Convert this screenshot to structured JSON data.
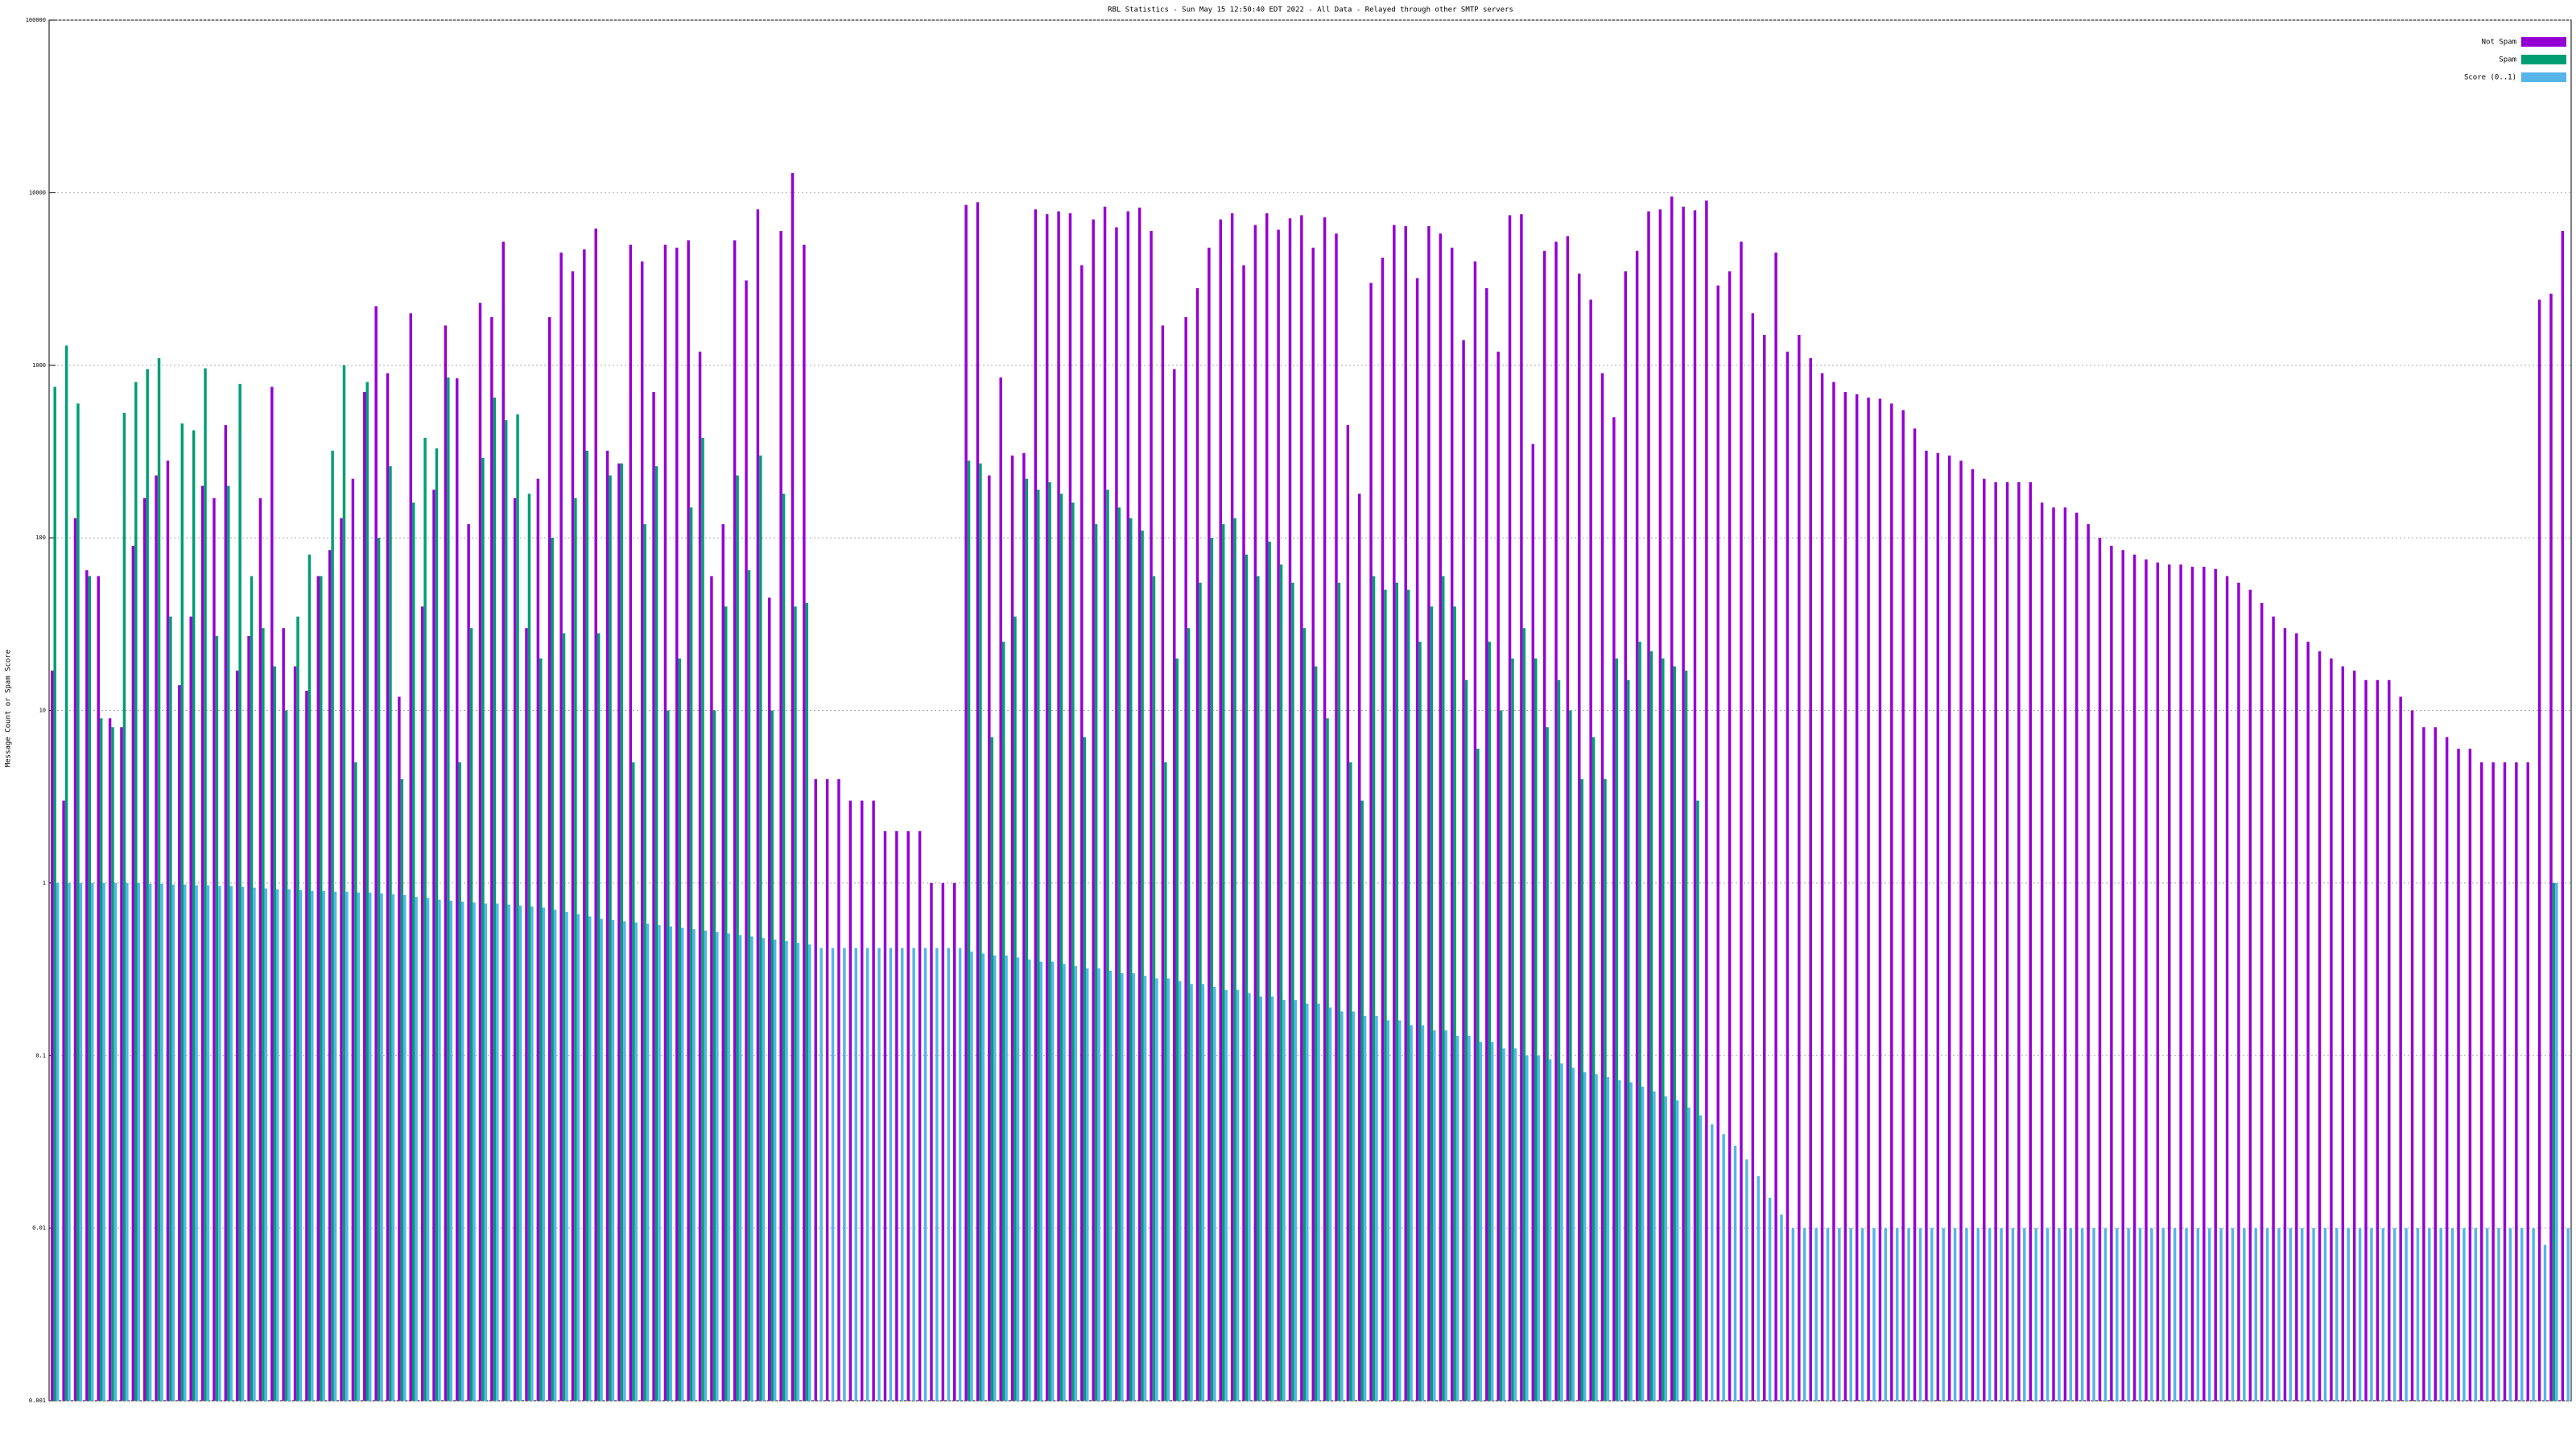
{
  "chart_data": {
    "type": "bar",
    "title": "RBL Statistics - Sun May 15 12:50:40 EDT 2022 - All Data - Relayed through other SMTP servers",
    "y_label": "Message Count or Spam Score",
    "log_scale": true,
    "grid": true,
    "legend": "top-right",
    "ylim": [
      0.001,
      100000
    ],
    "yticks": [
      0.001,
      0.01,
      0.1,
      1,
      10,
      100,
      1000,
      10000,
      100000
    ],
    "categories": [
      null,
      null,
      null,
      null,
      null,
      null,
      null,
      null,
      null,
      null,
      null,
      null,
      null,
      null,
      null,
      null,
      null,
      null,
      null,
      null,
      null,
      null,
      null,
      null,
      null,
      null,
      null,
      null,
      null,
      null,
      null,
      null,
      null,
      null,
      null,
      null,
      null,
      null,
      null,
      null,
      null,
      null,
      null,
      null,
      null,
      null,
      null,
      null,
      null,
      null,
      null,
      null,
      null,
      null,
      null,
      null,
      null,
      null,
      null,
      null,
      null,
      null,
      null,
      null,
      null,
      null,
      null,
      null,
      null,
      null,
      null,
      null,
      null,
      null,
      null,
      null,
      null,
      null,
      null,
      null,
      null,
      null,
      null,
      null,
      null,
      null,
      null,
      null,
      null,
      null,
      null,
      null,
      null,
      null,
      null,
      null,
      null,
      null,
      null,
      null,
      null,
      null,
      null,
      null,
      null,
      null,
      null,
      null,
      null,
      null,
      null,
      null,
      null,
      null,
      null,
      null,
      null,
      null,
      null,
      null,
      null,
      null,
      null,
      null,
      null,
      null,
      null,
      null,
      null,
      null,
      null,
      null,
      null,
      null,
      null,
      null,
      null,
      null,
      null,
      null,
      null,
      null,
      null,
      null,
      null,
      null,
      null,
      null,
      null,
      null,
      null,
      null,
      null,
      null,
      null,
      null,
      null,
      null,
      null,
      null,
      null,
      null,
      null,
      null,
      null,
      null,
      null,
      null,
      null,
      null,
      null,
      null,
      null,
      null,
      null,
      null,
      null,
      null,
      null,
      null,
      null,
      null,
      null,
      null,
      null,
      null,
      null,
      null,
      null,
      null,
      null,
      null,
      null,
      null,
      null,
      null,
      null,
      null,
      null,
      null,
      null,
      null,
      null,
      null,
      null,
      null,
      null,
      null,
      null,
      null,
      null,
      null,
      null,
      null,
      null,
      null,
      null,
      null
    ],
    "series": [
      {
        "name": "Not Spam",
        "color": "#9400d3",
        "values": [
          17,
          3,
          130,
          65,
          60,
          9,
          8,
          90,
          170,
          230,
          280,
          14,
          35,
          200,
          170,
          450,
          17,
          27,
          170,
          750,
          30,
          18,
          13,
          60,
          85,
          130,
          220,
          700,
          2200,
          900,
          12,
          2000,
          40,
          190,
          1700,
          840,
          120,
          2300,
          1900,
          5200,
          170,
          30,
          220,
          1900,
          4500,
          3500,
          4700,
          6200,
          320,
          270,
          5000,
          4000,
          700,
          5000,
          4800,
          5300,
          1200,
          60,
          120,
          5300,
          3100,
          8000,
          45,
          6000,
          13000,
          5000,
          4,
          4,
          4,
          3,
          3,
          3,
          2,
          2,
          2,
          2,
          1,
          1,
          1,
          8500,
          8800,
          230,
          850,
          300,
          310,
          8000,
          7500,
          7800,
          7600,
          3800,
          7000,
          8300,
          6300,
          7800,
          8200,
          6000,
          1700,
          950,
          1900,
          2800,
          4800,
          7000,
          7600,
          3800,
          6500,
          7600,
          6100,
          7100,
          7400,
          4800,
          7200,
          5800,
          450,
          180,
          3000,
          4200,
          6500,
          6400,
          3200,
          6400,
          5800,
          4800,
          1400,
          4000,
          2800,
          1200,
          7400,
          7500,
          350,
          4600,
          5200,
          5600,
          3400,
          2400,
          900,
          500,
          3500,
          4600,
          7800,
          8000,
          9500,
          8300,
          7900,
          9000,
          2900,
          3500,
          5200,
          2000,
          1500,
          4500,
          1200,
          1500,
          1100,
          900,
          800,
          700,
          680,
          650,
          640,
          600,
          550,
          430,
          320,
          310,
          300,
          280,
          250,
          220,
          210,
          210,
          210,
          210,
          160,
          150,
          150,
          140,
          120,
          100,
          90,
          85,
          80,
          75,
          72,
          70,
          70,
          68,
          68,
          66,
          60,
          55,
          50,
          42,
          35,
          30,
          28,
          25,
          22,
          20,
          18,
          17,
          15,
          15,
          15,
          12,
          10,
          8,
          8,
          7,
          6,
          6,
          5,
          5,
          5,
          5,
          5,
          2400,
          2600,
          6000
        ]
      },
      {
        "name": "Spam",
        "color": "#009e73",
        "values": [
          750,
          1300,
          600,
          60,
          9,
          8,
          530,
          800,
          950,
          1100,
          35,
          460,
          420,
          960,
          27,
          200,
          780,
          60,
          30,
          18,
          10,
          35,
          80,
          60,
          320,
          1000,
          5,
          800,
          100,
          260,
          4,
          160,
          380,
          330,
          850,
          5,
          30,
          290,
          650,
          480,
          520,
          180,
          20,
          100,
          28,
          170,
          320,
          28,
          230,
          270,
          5,
          120,
          260,
          10,
          20,
          150,
          380,
          10,
          40,
          230,
          65,
          300,
          10,
          180,
          40,
          42,
          null,
          null,
          null,
          null,
          null,
          null,
          null,
          null,
          null,
          null,
          null,
          null,
          null,
          280,
          270,
          7,
          25,
          35,
          220,
          190,
          210,
          180,
          160,
          7,
          120,
          190,
          150,
          130,
          110,
          60,
          5,
          20,
          30,
          55,
          100,
          120,
          130,
          80,
          60,
          95,
          70,
          55,
          30,
          18,
          9,
          55,
          5,
          3,
          60,
          50,
          55,
          50,
          25,
          40,
          60,
          40,
          15,
          6,
          25,
          10,
          20,
          30,
          20,
          8,
          15,
          10,
          4,
          7,
          4,
          20,
          15,
          25,
          22,
          20,
          18,
          17,
          3,
          null,
          null,
          null,
          null,
          null,
          null,
          null,
          null,
          null,
          null,
          null,
          null,
          null,
          null,
          null,
          null,
          null,
          null,
          null,
          null,
          null,
          null,
          null,
          null,
          null,
          null,
          null,
          null,
          null,
          null,
          null,
          null,
          null,
          null,
          null,
          null,
          null,
          null,
          null,
          null,
          null,
          null,
          null,
          null,
          null,
          null,
          null,
          null,
          null,
          null,
          null,
          null,
          null,
          null,
          null,
          null,
          null,
          null,
          null,
          null,
          null,
          null,
          null,
          null,
          null,
          null,
          null,
          null,
          null,
          null,
          null,
          null,
          null,
          1,
          null
        ]
      },
      {
        "name": "Score (0..1)",
        "color": "#56b4e9",
        "values": [
          1,
          1,
          1,
          1,
          1,
          1,
          1,
          1,
          0.99,
          0.99,
          0.98,
          0.98,
          0.97,
          0.97,
          0.96,
          0.96,
          0.95,
          0.94,
          0.93,
          0.92,
          0.92,
          0.91,
          0.9,
          0.9,
          0.89,
          0.89,
          0.88,
          0.88,
          0.87,
          0.86,
          0.85,
          0.83,
          0.82,
          0.8,
          0.79,
          0.78,
          0.77,
          0.76,
          0.76,
          0.75,
          0.74,
          0.73,
          0.72,
          0.7,
          0.68,
          0.66,
          0.64,
          0.62,
          0.61,
          0.6,
          0.59,
          0.58,
          0.57,
          0.56,
          0.55,
          0.54,
          0.53,
          0.52,
          0.51,
          0.5,
          0.49,
          0.48,
          0.47,
          0.46,
          0.45,
          0.44,
          0.42,
          0.42,
          0.42,
          0.42,
          0.42,
          0.42,
          0.42,
          0.42,
          0.42,
          0.42,
          0.42,
          0.42,
          0.42,
          0.4,
          0.39,
          0.38,
          0.38,
          0.37,
          0.36,
          0.35,
          0.35,
          0.34,
          0.33,
          0.32,
          0.32,
          0.31,
          0.3,
          0.3,
          0.29,
          0.28,
          0.28,
          0.27,
          0.26,
          0.26,
          0.25,
          0.24,
          0.24,
          0.23,
          0.22,
          0.22,
          0.21,
          0.21,
          0.2,
          0.2,
          0.19,
          0.18,
          0.18,
          0.17,
          0.17,
          0.16,
          0.16,
          0.15,
          0.15,
          0.14,
          0.14,
          0.13,
          0.13,
          0.12,
          0.12,
          0.11,
          0.11,
          0.1,
          0.1,
          0.095,
          0.09,
          0.085,
          0.08,
          0.078,
          0.075,
          0.072,
          0.07,
          0.066,
          0.062,
          0.058,
          0.055,
          0.05,
          0.045,
          0.04,
          0.035,
          0.03,
          0.025,
          0.02,
          0.015,
          0.012,
          0.01,
          0.01,
          0.01,
          0.01,
          0.01,
          0.01,
          0.01,
          0.01,
          0.01,
          0.01,
          0.01,
          0.01,
          0.01,
          0.01,
          0.01,
          0.01,
          0.01,
          0.01,
          0.01,
          0.01,
          0.01,
          0.01,
          0.01,
          0.01,
          0.01,
          0.01,
          0.01,
          0.01,
          0.01,
          0.01,
          0.01,
          0.01,
          0.01,
          0.01,
          0.01,
          0.01,
          0.01,
          0.01,
          0.01,
          0.01,
          0.01,
          0.01,
          0.01,
          0.01,
          0.01,
          0.01,
          0.01,
          0.01,
          0.01,
          0.01,
          0.01,
          0.01,
          0.01,
          0.01,
          0.01,
          0.01,
          0.01,
          0.01,
          0.01,
          0.01,
          0.01,
          0.01,
          0.01,
          0.01,
          0.01,
          0.008,
          1,
          0.01
        ]
      }
    ]
  }
}
